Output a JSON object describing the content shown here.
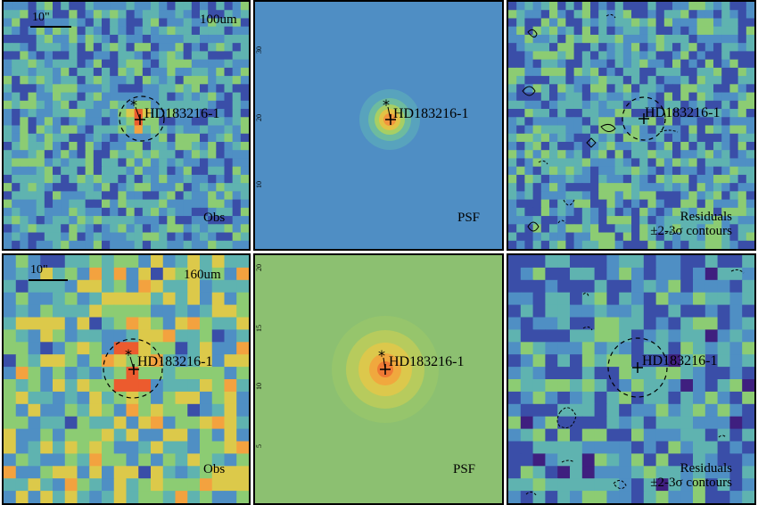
{
  "target_name": "HD183216-1",
  "scale_bar_label": "10\"",
  "colors": {
    "obs100_base": "#5a9fc0",
    "psf100_bg": "#4f8ec4",
    "obs160_base": "#5da9b8",
    "psf160_bg": "#8cc071",
    "residual_base": "#4e8cc8"
  },
  "panels": [
    {
      "id": "obs-100",
      "band": "100um",
      "kind_label": "Obs",
      "secondary_label": "",
      "has_scale_bar": true,
      "has_aperture": true
    },
    {
      "id": "psf-100",
      "band": "",
      "kind_label": "PSF",
      "secondary_label": "",
      "has_scale_bar": false,
      "has_aperture": false,
      "y_ticks": [
        "30",
        "20",
        "10"
      ]
    },
    {
      "id": "res-100",
      "band": "",
      "kind_label": "Residuals",
      "secondary_label": "±2-3σ contours",
      "has_scale_bar": false,
      "has_aperture": true
    },
    {
      "id": "obs-160",
      "band": "160um",
      "kind_label": "Obs",
      "secondary_label": "",
      "has_scale_bar": true,
      "has_aperture": true
    },
    {
      "id": "psf-160",
      "band": "",
      "kind_label": "PSF",
      "secondary_label": "",
      "has_scale_bar": false,
      "has_aperture": false,
      "y_ticks": [
        "20",
        "15",
        "10",
        "5"
      ]
    },
    {
      "id": "res-160",
      "band": "",
      "kind_label": "Residuals",
      "secondary_label": "±2-3σ contours",
      "has_scale_bar": false,
      "has_aperture": true
    }
  ]
}
